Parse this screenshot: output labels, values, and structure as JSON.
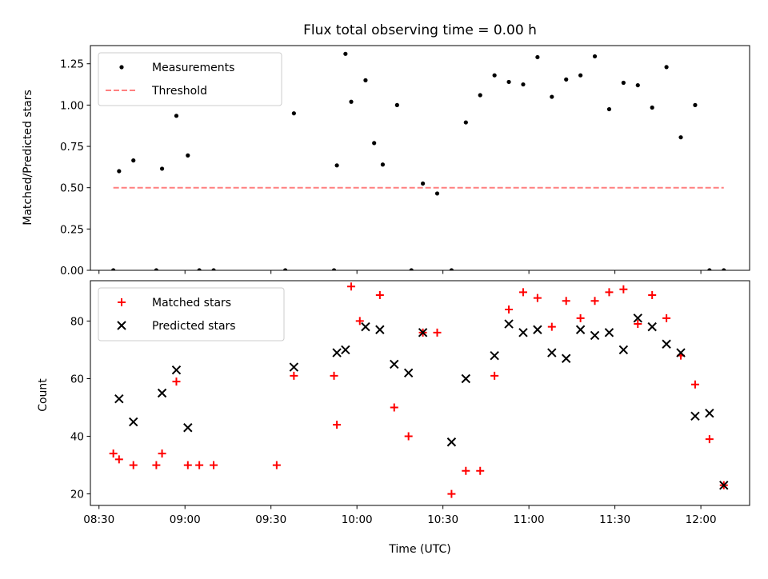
{
  "chart_data": [
    {
      "type": "scatter",
      "title": "Flux total observing time = 0.00 h",
      "xlabel": "",
      "ylabel": "Matched/Predicted stars",
      "xlim": [
        "08:27",
        "12:17"
      ],
      "ylim": [
        0,
        1.36
      ],
      "yticks": [
        "0.00",
        "0.25",
        "0.50",
        "0.75",
        "1.00",
        "1.25"
      ],
      "legend_position": "upper-left",
      "grid": false,
      "series": [
        {
          "name": "Measurements",
          "kind": "points",
          "color": "#000000",
          "x": [
            "08:35",
            "08:37",
            "08:42",
            "08:50",
            "08:52",
            "08:57",
            "09:01",
            "09:05",
            "09:10",
            "09:35",
            "09:38",
            "09:52",
            "09:53",
            "09:56",
            "09:58",
            "10:03",
            "10:06",
            "10:09",
            "10:14",
            "10:19",
            "10:23",
            "10:28",
            "10:33",
            "10:38",
            "10:43",
            "10:48",
            "10:53",
            "10:58",
            "11:03",
            "11:08",
            "11:13",
            "11:18",
            "11:23",
            "11:28",
            "11:33",
            "11:38",
            "11:43",
            "11:48",
            "11:53",
            "11:58",
            "12:03",
            "12:08"
          ],
          "y": [
            0.0,
            0.6,
            0.665,
            0.0,
            0.615,
            0.935,
            0.695,
            0.0,
            0.0,
            0.0,
            0.95,
            0.0,
            0.635,
            1.31,
            1.02,
            1.15,
            0.77,
            0.64,
            1.0,
            0.0,
            0.525,
            0.465,
            0.0,
            0.895,
            1.06,
            1.18,
            1.14,
            1.125,
            1.29,
            1.05,
            1.155,
            1.18,
            1.295,
            0.975,
            1.135,
            1.12,
            0.985,
            1.23,
            0.805,
            1.0,
            0.0,
            0.0
          ]
        },
        {
          "name": "Threshold",
          "kind": "dashed-line",
          "color": "#ff8080",
          "x": [
            "08:35",
            "12:08"
          ],
          "y": [
            0.5,
            0.5
          ]
        }
      ]
    },
    {
      "type": "scatter",
      "title": "",
      "xlabel": "Time (UTC)",
      "ylabel": "Count",
      "xlim": [
        "08:27",
        "12:17"
      ],
      "ylim": [
        16,
        94
      ],
      "yticks": [
        "20",
        "40",
        "60",
        "80"
      ],
      "xticks": [
        "08:30",
        "09:00",
        "09:30",
        "10:00",
        "10:30",
        "11:00",
        "11:30",
        "12:00"
      ],
      "legend_position": "upper-left",
      "grid": false,
      "series": [
        {
          "name": "Matched stars",
          "marker": "plus",
          "color": "#ff0000",
          "x": [
            "08:35",
            "08:37",
            "08:42",
            "08:50",
            "08:52",
            "08:57",
            "09:01",
            "09:05",
            "09:10",
            "09:32",
            "09:38",
            "09:52",
            "09:53",
            "09:58",
            "10:01",
            "10:08",
            "10:13",
            "10:18",
            "10:23",
            "10:28",
            "10:33",
            "10:38",
            "10:43",
            "10:48",
            "10:53",
            "10:58",
            "11:03",
            "11:08",
            "11:13",
            "11:18",
            "11:23",
            "11:28",
            "11:33",
            "11:38",
            "11:43",
            "11:48",
            "11:53",
            "11:58",
            "12:03",
            "12:08"
          ],
          "y": [
            34,
            32,
            30,
            30,
            34,
            59,
            30,
            30,
            30,
            30,
            61,
            61,
            44,
            92,
            80,
            89,
            50,
            40,
            76,
            76,
            20,
            28,
            28,
            61,
            84,
            90,
            88,
            78,
            87,
            81,
            87,
            90,
            91,
            79,
            89,
            81,
            68,
            58,
            39,
            23
          ]
        },
        {
          "name": "Predicted stars",
          "marker": "x",
          "color": "#000000",
          "x": [
            "08:37",
            "08:42",
            "08:52",
            "08:57",
            "09:01",
            "09:38",
            "09:53",
            "09:56",
            "10:03",
            "10:08",
            "10:13",
            "10:18",
            "10:23",
            "10:33",
            "10:38",
            "10:48",
            "10:53",
            "10:58",
            "11:03",
            "11:08",
            "11:13",
            "11:18",
            "11:23",
            "11:28",
            "11:33",
            "11:38",
            "11:43",
            "11:48",
            "11:53",
            "11:58",
            "12:03",
            "12:08"
          ],
          "y": [
            53,
            45,
            55,
            63,
            43,
            64,
            69,
            70,
            78,
            77,
            65,
            62,
            76,
            38,
            60,
            68,
            79,
            76,
            77,
            69,
            67,
            77,
            75,
            76,
            70,
            81,
            78,
            72,
            69,
            47,
            48,
            23
          ]
        }
      ]
    }
  ]
}
